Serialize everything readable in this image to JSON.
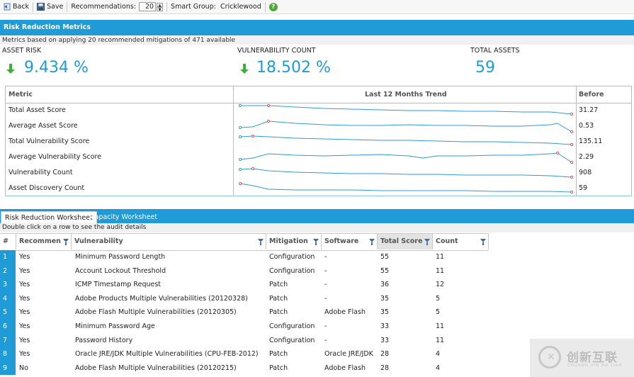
{
  "toolbar": {
    "back_label": "Back",
    "save_label": "Save",
    "recommendations_label": "Recommendations:",
    "recommendations_value": "20",
    "smart_group_label": "Smart Group:",
    "smart_group_value": "Cricklewood",
    "help_glyph": "?"
  },
  "metrics_panel": {
    "title": "Risk Reduction Metrics",
    "note": "Metrics based on applying 20 recommended mitigations of 471 available",
    "kpis": [
      {
        "label": "ASSET RISK",
        "value": "9.434 %",
        "trend": "down"
      },
      {
        "label": "VULNERABILITY COUNT",
        "value": "18.502 %",
        "trend": "down"
      },
      {
        "label": "TOTAL ASSETS",
        "value": "59"
      }
    ],
    "trend_table": {
      "col_metric": "Metric",
      "col_trend": "Last 12 Months Trend",
      "col_before": "Before",
      "rows": [
        {
          "name": "Total Asset Score",
          "before": "31.27"
        },
        {
          "name": "Average Asset Score",
          "before": "0.53"
        },
        {
          "name": "Total Vulnerability Score",
          "before": "135.11"
        },
        {
          "name": "Average Vulnerability Score",
          "before": "2.29"
        },
        {
          "name": "Vulnerability Count",
          "before": "908"
        },
        {
          "name": "Asset Discovery Count",
          "before": "59"
        }
      ]
    }
  },
  "tabs": {
    "active": "Risk Reduction Worksheet",
    "inactive": "Capacity Worksheet"
  },
  "worksheet": {
    "hint": "Double click on a row to see the audit details",
    "columns": [
      "#",
      "Recommen",
      "Vulnerability",
      "Mitigation",
      "Software",
      "Total Score",
      "Count"
    ],
    "rows": [
      {
        "n": "1",
        "rec": "Yes",
        "vuln": "Minimum Password Length",
        "mit": "Configuration",
        "soft": "-",
        "score": "55",
        "count": "11"
      },
      {
        "n": "2",
        "rec": "Yes",
        "vuln": "Account Lockout Threshold",
        "mit": "Configuration",
        "soft": "-",
        "score": "55",
        "count": "11"
      },
      {
        "n": "3",
        "rec": "Yes",
        "vuln": "ICMP Timestamp Request",
        "mit": "Patch",
        "soft": "-",
        "score": "36",
        "count": "12"
      },
      {
        "n": "4",
        "rec": "Yes",
        "vuln": "Adobe Products Multiple Vulnerabilities (20120328)",
        "mit": "Patch",
        "soft": "-",
        "score": "35",
        "count": "5"
      },
      {
        "n": "5",
        "rec": "Yes",
        "vuln": "Adobe Flash Multiple Vulnerabilities (20120305)",
        "mit": "Patch",
        "soft": "Adobe Flash",
        "score": "35",
        "count": "5"
      },
      {
        "n": "6",
        "rec": "Yes",
        "vuln": "Minimum Password Age",
        "mit": "Configuration",
        "soft": "-",
        "score": "33",
        "count": "11"
      },
      {
        "n": "7",
        "rec": "Yes",
        "vuln": "Password History",
        "mit": "Configuration",
        "soft": "-",
        "score": "33",
        "count": "11"
      },
      {
        "n": "8",
        "rec": "Yes",
        "vuln": "Oracle JRE/JDK Multiple Vulnerabilities (CPU-FEB-2012)",
        "mit": "Patch",
        "soft": "Oracle JRE/JDK",
        "score": "28",
        "count": "4"
      },
      {
        "n": "9",
        "rec": "No",
        "vuln": "Adobe Flash Multiple Vulnerabilities (20120215)",
        "mit": "Patch",
        "soft": "Adobe Flash",
        "score": "28",
        "count": "4"
      }
    ]
  },
  "watermark": {
    "main": "创新互联",
    "sub": "CHUANG XIN HU LIAN"
  },
  "colors": {
    "accent": "#1f9bd7",
    "arrow": "#3fae3a",
    "spark_line": "#2f9bd5",
    "spark_marker": "#e05050"
  }
}
